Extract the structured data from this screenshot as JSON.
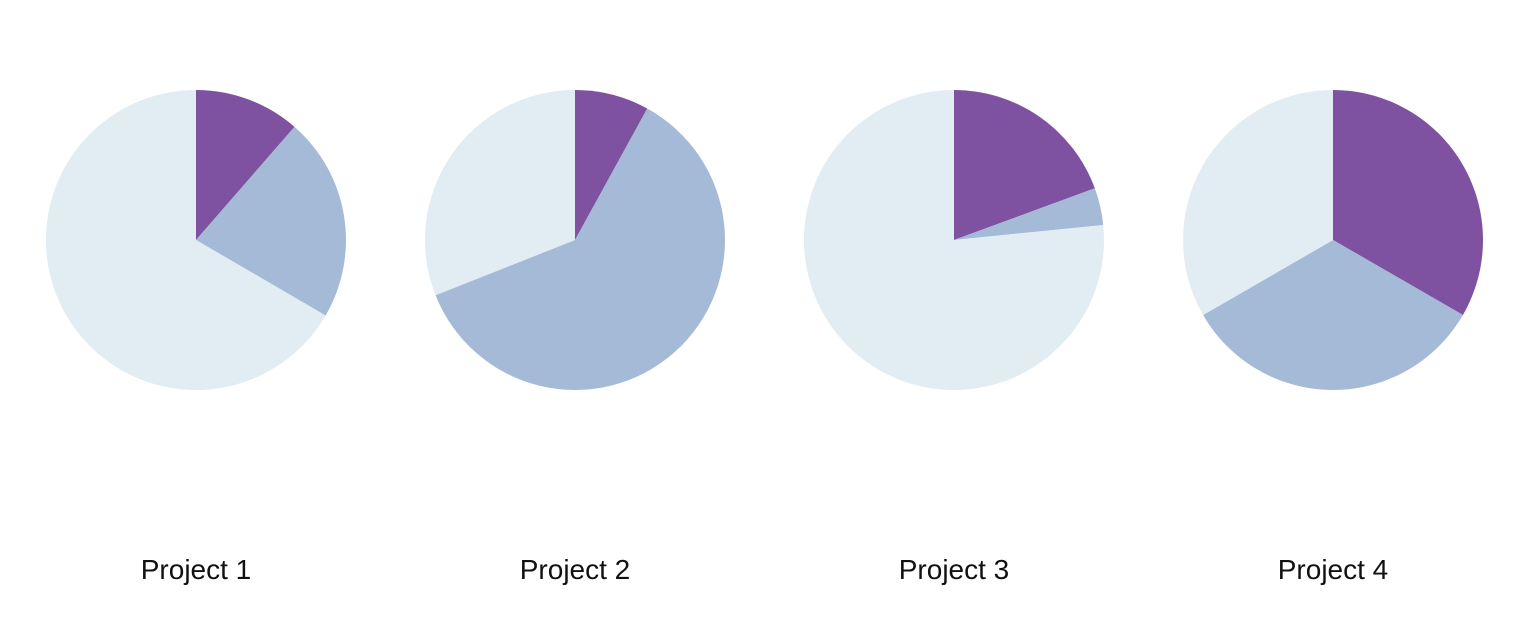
{
  "chart_data": [
    {
      "type": "pie",
      "title": "Project 1",
      "slices": [
        {
          "value": 11.4,
          "color": "#7e52a0"
        },
        {
          "value": 22.0,
          "color": "#a5bad6"
        },
        {
          "value": 66.6,
          "color": "#e1ecf3"
        }
      ]
    },
    {
      "type": "pie",
      "title": "Project 2",
      "slices": [
        {
          "value": 8.0,
          "color": "#7e52a0"
        },
        {
          "value": 61.0,
          "color": "#a5bad6"
        },
        {
          "value": 31.0,
          "color": "#e1ecf3"
        }
      ]
    },
    {
      "type": "pie",
      "title": "Project 3",
      "slices": [
        {
          "value": 19.4,
          "color": "#7e52a0"
        },
        {
          "value": 4.0,
          "color": "#a5bad6"
        },
        {
          "value": 76.6,
          "color": "#e1ecf3"
        }
      ]
    },
    {
      "type": "pie",
      "title": "Project 4",
      "slices": [
        {
          "value": 33.33,
          "color": "#7e52a0"
        },
        {
          "value": 33.33,
          "color": "#a5bad6"
        },
        {
          "value": 33.34,
          "color": "#e1ecf3"
        }
      ]
    }
  ]
}
